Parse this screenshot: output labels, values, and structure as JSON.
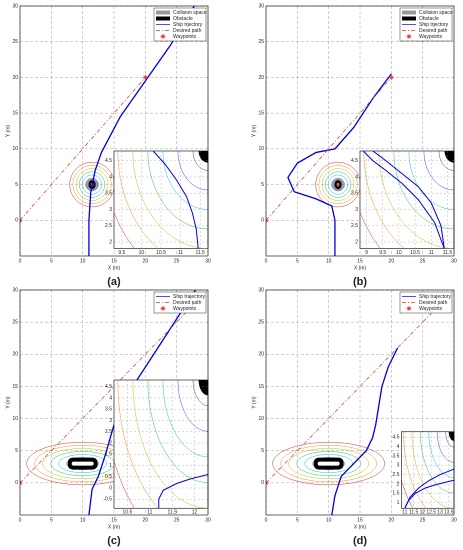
{
  "chart_data": [
    {
      "type": "line",
      "panel_label": "(a)",
      "xlabel": "X (m)",
      "ylabel": "Y (m)",
      "xlim": [
        0,
        30
      ],
      "ylim": [
        -5,
        30
      ],
      "xticks": [
        0,
        5,
        10,
        15,
        20,
        25,
        30
      ],
      "yticks": [
        0,
        5,
        10,
        15,
        20,
        25,
        30
      ],
      "grid": true,
      "obstacle": {
        "x": 11.5,
        "y": 5,
        "shape": "circle"
      },
      "legend_extra": [
        {
          "name": "Collision space",
          "color": "#999999"
        },
        {
          "name": "Obstacle",
          "color": "#000000"
        }
      ],
      "series": [
        {
          "name": "Ship trjectory",
          "color": "#0000dd",
          "line_style": "solid",
          "x": [
            11,
            11,
            11.3,
            12,
            13,
            14.5,
            16,
            20,
            24,
            27.8
          ],
          "y": [
            -5,
            0,
            4,
            7,
            9.5,
            12,
            14.5,
            19.5,
            24.5,
            30
          ]
        },
        {
          "name": "Desired path",
          "color": "#e03030",
          "line_style": "dashdot",
          "x": [
            0,
            20
          ],
          "y": [
            0,
            20
          ]
        },
        {
          "name": "Waypoints",
          "color": "#e03030",
          "line_style": "none",
          "marker": "star",
          "x": [
            0,
            20
          ],
          "y": [
            0,
            20
          ]
        }
      ],
      "inset": {
        "xlim": [
          9.3,
          11.7
        ],
        "ylim": [
          1.8,
          4.8
        ],
        "xticks": [
          9.5,
          10,
          10.5,
          11,
          11.5
        ],
        "yticks": [
          2,
          2.5,
          3,
          3.5,
          4,
          4.5
        ],
        "series": [
          {
            "color": "#0000dd",
            "x": [
              11.45,
              11.4,
              11.3,
              11.15,
              10.9,
              10.6,
              10.3
            ],
            "y": [
              1.8,
              2.4,
              2.9,
              3.4,
              3.9,
              4.4,
              4.8
            ]
          }
        ]
      }
    },
    {
      "type": "line",
      "panel_label": "(b)",
      "xlabel": "X (m)",
      "ylabel": "Y (m)",
      "xlim": [
        0,
        30
      ],
      "ylim": [
        -5,
        30
      ],
      "xticks": [
        0,
        5,
        10,
        15,
        20,
        25,
        30
      ],
      "yticks": [
        0,
        5,
        10,
        15,
        20,
        25,
        30
      ],
      "grid": true,
      "obstacle": {
        "x": 11.5,
        "y": 5,
        "shape": "circle"
      },
      "legend_extra": [
        {
          "name": "Collision space",
          "color": "#999999"
        },
        {
          "name": "Obstacle",
          "color": "#000000"
        }
      ],
      "series": [
        {
          "name": "Ship trjectory",
          "color": "#0000dd",
          "line_style": "solid",
          "x": [
            11,
            11,
            10.5,
            8,
            4.5,
            3.5,
            5,
            8,
            11,
            14,
            17,
            20
          ],
          "y": [
            -5,
            0,
            2,
            3,
            4,
            6,
            8,
            9.5,
            10,
            13,
            17,
            20.5
          ]
        },
        {
          "name": "Desired path",
          "color": "#e03030",
          "line_style": "dashdot",
          "x": [
            0,
            20
          ],
          "y": [
            0,
            20
          ]
        },
        {
          "name": "Waypoints",
          "color": "#e03030",
          "line_style": "none",
          "marker": "star",
          "x": [
            0,
            20
          ],
          "y": [
            0,
            20
          ]
        }
      ],
      "inset": {
        "xlim": [
          8.8,
          11.7
        ],
        "ylim": [
          1.8,
          4.8
        ],
        "xticks": [
          9,
          9.5,
          10,
          10.5,
          11,
          11.5
        ],
        "yticks": [
          2,
          2.5,
          3,
          3.5,
          4,
          4.5
        ],
        "series": [
          {
            "color": "#0000dd",
            "x": [
              11.4,
              11.1,
              10.6,
              10.1,
              9.6,
              9.2,
              8.9
            ],
            "y": [
              1.8,
              2.6,
              3.3,
              3.8,
              4.2,
              4.5,
              4.8
            ]
          },
          {
            "color": "#0000dd",
            "x": [
              11.4,
              11.3,
              11.0,
              10.6,
              10.1,
              9.6,
              9.2
            ],
            "y": [
              1.8,
              2.5,
              3.2,
              3.7,
              4.1,
              4.5,
              4.8
            ]
          }
        ]
      }
    },
    {
      "type": "line",
      "panel_label": "(c)",
      "xlabel": "X (m)",
      "ylabel": "Y (m)",
      "xlim": [
        0,
        30
      ],
      "ylim": [
        -5,
        30
      ],
      "xticks": [
        0,
        5,
        10,
        15,
        20,
        25,
        30
      ],
      "yticks": [
        0,
        5,
        10,
        15,
        20,
        25,
        30
      ],
      "grid": true,
      "obstacle": {
        "x": 10,
        "y": 3,
        "shape": "ellipse"
      },
      "series": [
        {
          "name": "Ship trajectory",
          "color": "#0000dd",
          "line_style": "solid",
          "x": [
            11,
            11.5,
            12.5,
            13.5,
            15,
            18,
            22,
            26,
            28
          ],
          "y": [
            -5,
            -1,
            1,
            4,
            9,
            15,
            21,
            27,
            30
          ]
        },
        {
          "name": "Desired path",
          "color": "#e03030",
          "line_style": "dashdot",
          "x": [
            0,
            30
          ],
          "y": [
            0,
            30
          ]
        },
        {
          "name": "Waypoints",
          "color": "#e03030",
          "line_style": "none",
          "marker": "star",
          "x": [
            0
          ],
          "y": [
            0
          ]
        }
      ],
      "inset": {
        "xlim": [
          10.2,
          12.3
        ],
        "ylim": [
          -0.9,
          4.8
        ],
        "xticks": [
          10.5,
          11,
          11.5,
          12
        ],
        "yticks": [
          -0.5,
          0,
          0.5,
          1,
          1.5,
          2,
          2.5,
          3,
          3.5,
          4,
          4.5
        ],
        "series": [
          {
            "color": "#0000dd",
            "x": [
              11.2,
              11.2,
              11.3,
              11.6,
              11.9,
              12.3
            ],
            "y": [
              -0.9,
              -0.5,
              -0.1,
              0.2,
              0.4,
              0.6
            ]
          }
        ]
      }
    },
    {
      "type": "line",
      "panel_label": "(d)",
      "xlabel": "X (m)",
      "ylabel": "Y (m)",
      "xlim": [
        0,
        30
      ],
      "ylim": [
        -5,
        30
      ],
      "xticks": [
        0,
        5,
        10,
        15,
        20,
        25,
        30
      ],
      "yticks": [
        0,
        5,
        10,
        15,
        20,
        25,
        30
      ],
      "grid": true,
      "obstacle": {
        "x": 10,
        "y": 3,
        "shape": "ellipse"
      },
      "series": [
        {
          "name": "Ship trajectory",
          "color": "#0000dd",
          "line_style": "solid",
          "x": [
            10.5,
            11,
            12,
            14,
            16,
            17,
            17.5,
            18,
            18.5,
            19.5,
            21
          ],
          "y": [
            -5,
            -2,
            1,
            3,
            5,
            7,
            9,
            12,
            15,
            18,
            21
          ]
        },
        {
          "name": "Desired path",
          "color": "#e03030",
          "line_style": "dashdot",
          "x": [
            0,
            30
          ],
          "y": [
            0,
            30
          ]
        },
        {
          "name": "Waypoints",
          "color": "#e03030",
          "line_style": "none",
          "marker": "star",
          "x": [
            0
          ],
          "y": [
            0
          ]
        }
      ],
      "inset": {
        "xlim": [
          10.8,
          13.8
        ],
        "ylim": [
          0.7,
          4.8
        ],
        "xticks": [
          11,
          11.5,
          12,
          12.5,
          13,
          13.5
        ],
        "yticks": [
          1,
          1.5,
          2,
          2.5,
          3,
          3.5,
          4,
          4.5
        ],
        "series": [
          {
            "color": "#0000dd",
            "x": [
              11,
              11.3,
              11.8,
              12.4,
              13,
              13.8
            ],
            "y": [
              0.7,
              1.3,
              1.8,
              2.2,
              2.5,
              2.8
            ]
          },
          {
            "color": "#0000dd",
            "x": [
              11,
              11.2,
              11.6,
              12.2,
              12.9,
              13.8
            ],
            "y": [
              0.7,
              1.1,
              1.5,
              1.8,
              2.0,
              2.2
            ]
          }
        ]
      }
    }
  ]
}
